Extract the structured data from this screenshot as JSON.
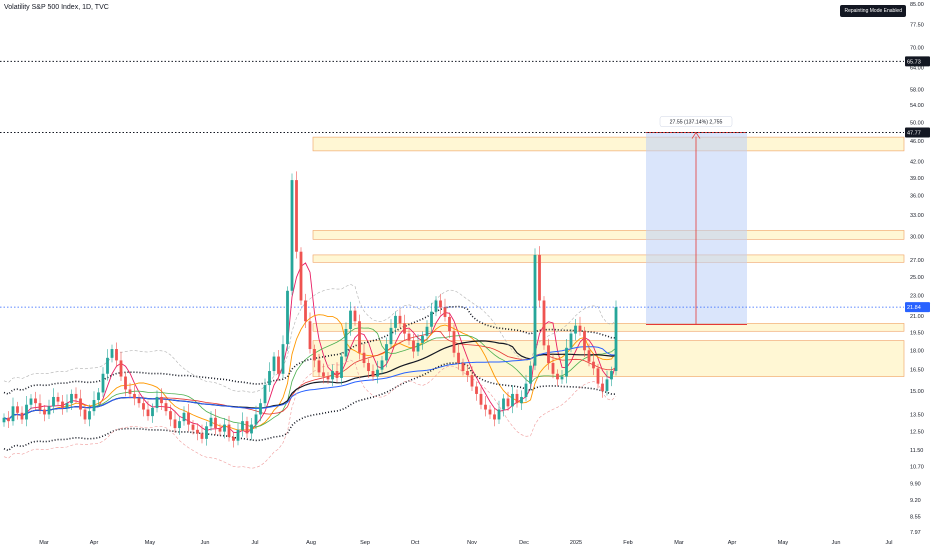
{
  "chart_data": {
    "type": "candlestick",
    "title": "Volatility S&P 500 Index, 1D, TVC",
    "badge": "Repainting Mode Enabled",
    "y_scale": "log",
    "ylim": [
      7.97,
      85.0
    ],
    "y_ticks": [
      "85.00",
      "77.50",
      "70.00",
      "64.00",
      "58.00",
      "54.00",
      "50.00",
      "46.00",
      "42.00",
      "39.00",
      "36.00",
      "33.00",
      "30.00",
      "27.00",
      "25.00",
      "23.00",
      "21.00",
      "19.50",
      "18.00",
      "16.50",
      "15.00",
      "13.50",
      "12.50",
      "11.50",
      "10.70",
      "9.90",
      "9.20",
      "8.55",
      "7.97"
    ],
    "x_ticks": [
      "Mar",
      "Apr",
      "May",
      "Jun",
      "Jul",
      "Aug",
      "Sep",
      "Oct",
      "Nov",
      "Dec",
      "2025",
      "Feb",
      "Mar",
      "Apr",
      "May",
      "Jun",
      "Jul"
    ],
    "price_labels": [
      "65.73",
      "47.77",
      "21.84"
    ],
    "measure_label": "27.55 (137.14%) 2,755",
    "colors": {
      "up": "#26a69a",
      "down": "#ef5350",
      "measure_fill": "#bbd0f7",
      "measure_line": "#e53935",
      "zone": "#fff2b8",
      "zone_border": "#f0a060"
    },
    "series": [
      {
        "name": "close",
        "values": [
          13.3,
          13.1,
          14.0,
          13.6,
          13.2,
          14.1,
          14.5,
          14.2,
          13.8,
          13.5,
          14.0,
          14.6,
          14.3,
          13.9,
          14.2,
          14.8,
          14.5,
          13.8,
          13.2,
          13.7,
          14.4,
          14.9,
          16.2,
          17.4,
          18.1,
          17.2,
          16.0,
          15.1,
          14.8,
          14.5,
          14.2,
          13.8,
          13.4,
          13.9,
          14.6,
          14.2,
          13.7,
          13.2,
          12.7,
          13.1,
          13.6,
          12.9,
          12.6,
          12.4,
          12.1,
          12.8,
          13.3,
          12.7,
          12.5,
          12.9,
          12.2,
          12.0,
          12.6,
          13.1,
          12.4,
          12.9,
          13.5,
          14.2,
          15.4,
          16.4,
          17.5,
          16.2,
          18.5,
          23.5,
          38.6,
          28.0,
          22.5,
          20.5,
          18.1,
          17.2,
          16.3,
          16.0,
          15.8,
          16.4,
          15.9,
          17.5,
          19.8,
          21.5,
          20.5,
          17.8,
          17.0,
          16.4,
          16.0,
          16.5,
          17.2,
          18.5,
          19.9,
          21.0,
          20.3,
          19.4,
          18.8,
          17.9,
          18.6,
          19.2,
          20.0,
          21.4,
          22.5,
          21.8,
          20.9,
          19.6,
          17.8,
          17.0,
          16.4,
          16.1,
          15.3,
          14.8,
          14.1,
          13.8,
          13.5,
          13.2,
          13.8,
          14.5,
          14.0,
          14.8,
          14.2,
          14.6,
          15.5,
          16.8,
          27.6,
          22.5,
          18.4,
          17.0,
          16.2,
          15.8,
          16.0,
          18.2,
          19.4,
          20.1,
          19.6,
          18.0,
          17.1,
          16.6,
          15.5,
          15.0,
          15.8,
          16.4,
          21.84
        ]
      },
      {
        "name": "bands",
        "values": []
      }
    ]
  }
}
